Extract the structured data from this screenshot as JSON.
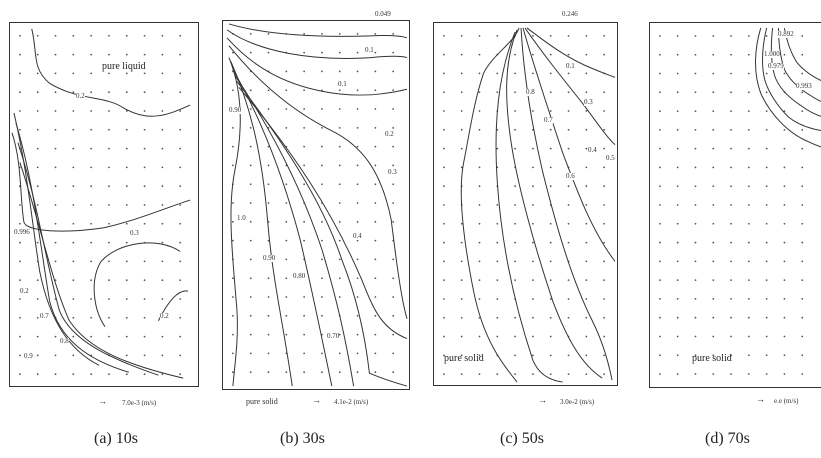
{
  "panels": [
    {
      "caption": "(a)  10s",
      "top_value": "",
      "region_label": "pure liquid",
      "contour_labels": [
        "0.2",
        "0.996",
        "0.3",
        "0.2",
        "0.2",
        "0.7",
        "0.8",
        "0.9"
      ],
      "scale_arrow": "→",
      "scale_text": "7.0e-3 (m/s)",
      "left_text": ""
    },
    {
      "caption": "(b)  30s",
      "top_value": "0.049",
      "region_label": "",
      "contour_labels": [
        "0.1",
        "0.1",
        "0.90",
        "0.2",
        "0.3",
        "1.0",
        "0.90",
        "0.80",
        "0.4",
        "0.70"
      ],
      "scale_arrow": "→",
      "scale_text": "4.1e-2 (m/s)",
      "left_text": "pure solid"
    },
    {
      "caption": "(c)  50s",
      "top_value": "0.246",
      "region_label": "pure solid",
      "contour_labels": [
        "0.1",
        "0.3",
        "0.4",
        "0.5",
        "0.6",
        "0.7",
        "0.8"
      ],
      "scale_arrow": "→",
      "scale_text": "3.0e-2 (m/s)",
      "left_text": ""
    },
    {
      "caption": "(d)  70s",
      "top_value": "",
      "region_label": "pure solid",
      "contour_labels": [
        "0.892",
        "0.979",
        "1.000",
        "0.993"
      ],
      "scale_arrow": "→",
      "scale_text": "e.e (m/s)",
      "left_text": ""
    }
  ]
}
